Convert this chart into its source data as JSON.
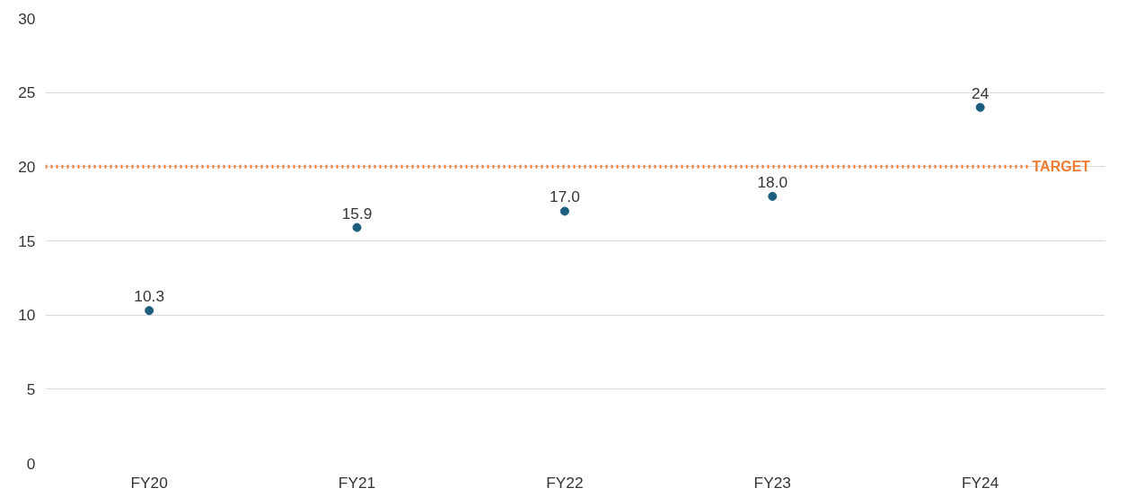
{
  "chart_data": {
    "type": "scatter",
    "categories": [
      "FY20",
      "FY21",
      "FY22",
      "FY23",
      "FY24"
    ],
    "values": [
      10.3,
      15.9,
      17.0,
      18.0,
      24
    ],
    "value_labels": [
      "10.3",
      "15.9",
      "17.0",
      "18.0",
      "24"
    ],
    "color": "#1b5e7e",
    "marker": "circle",
    "ylim": [
      0,
      30
    ],
    "yticks": [
      0,
      5,
      10,
      15,
      20,
      25,
      30
    ],
    "grid": "y",
    "ref_lines": [
      {
        "axis": "y",
        "value": 20,
        "label": "TARGET",
        "color": "#ee7b30",
        "line_style": "dotted"
      }
    ]
  }
}
